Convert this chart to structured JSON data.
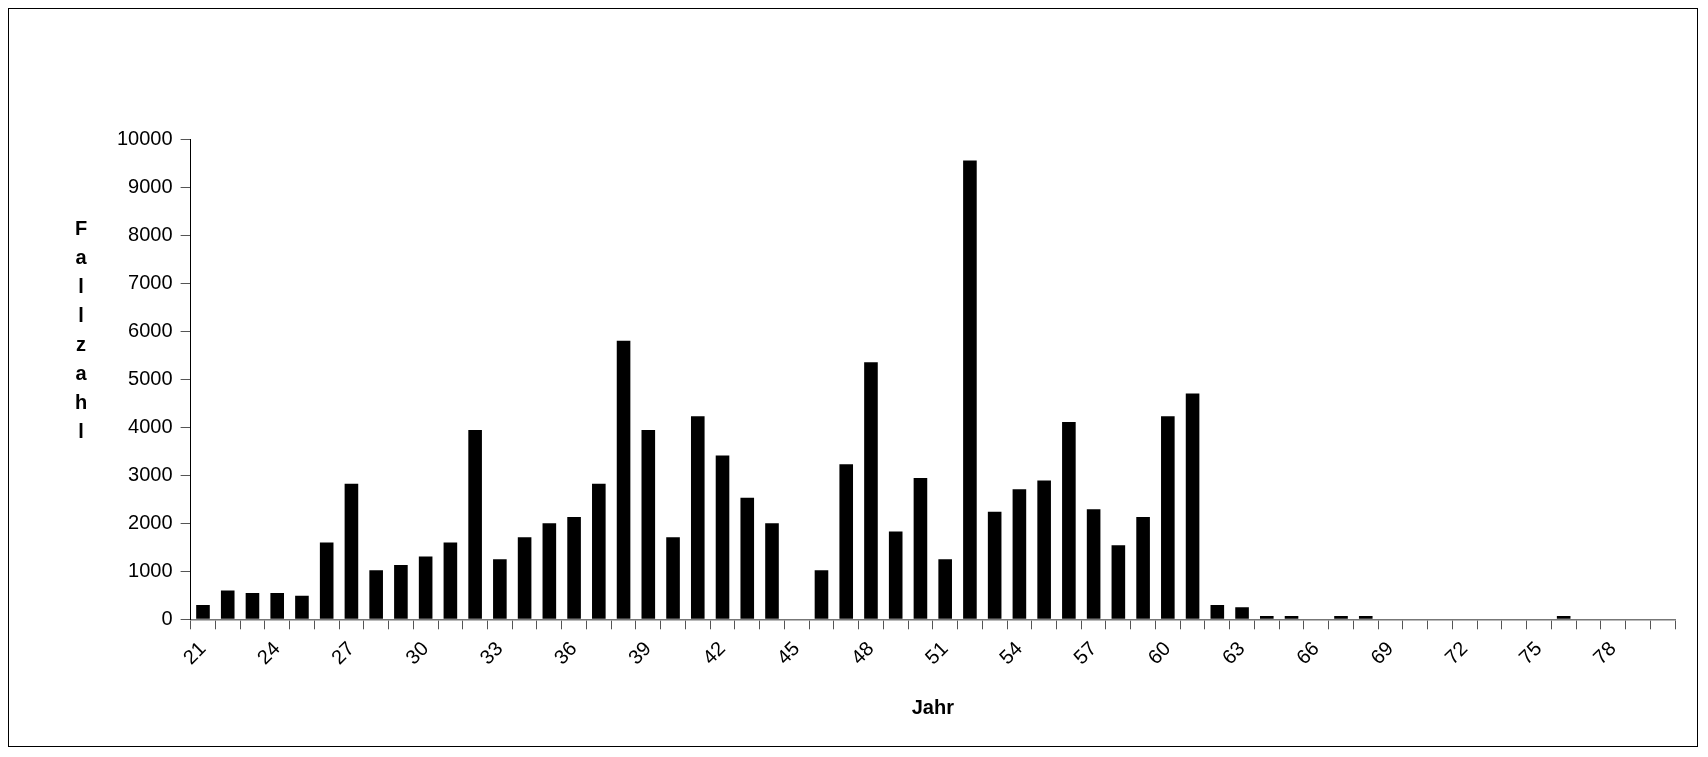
{
  "chart_data": {
    "type": "bar",
    "xlabel": "Jahr",
    "ylabel": "Fallzahl",
    "categories": [
      "21",
      null,
      null,
      "24",
      null,
      null,
      "27",
      null,
      null,
      "30",
      null,
      null,
      "33",
      null,
      null,
      "36",
      null,
      null,
      "39",
      null,
      null,
      "42",
      null,
      null,
      "45",
      null,
      null,
      "48",
      null,
      null,
      "51",
      null,
      null,
      "54",
      null,
      null,
      "57",
      null,
      null,
      "60",
      null,
      null,
      "63",
      null,
      null,
      "66",
      null,
      null,
      "69",
      null,
      null,
      "72",
      null,
      null,
      "75",
      null,
      null,
      "78",
      null,
      null
    ],
    "values": [
      300,
      600,
      550,
      550,
      490,
      1600,
      2820,
      1020,
      1130,
      1310,
      1600,
      3940,
      1250,
      1710,
      2000,
      2130,
      2820,
      5800,
      3940,
      1710,
      4230,
      3410,
      2530,
      2000,
      0,
      1020,
      3230,
      5350,
      1830,
      2940,
      1250,
      9550,
      2240,
      2710,
      2890,
      4110,
      2290,
      1540,
      2130,
      4230,
      4700,
      300,
      250,
      70,
      70,
      0,
      70,
      70,
      0,
      0,
      0,
      0,
      0,
      0,
      0,
      70,
      0,
      0,
      0,
      0
    ],
    "color": "#000000",
    "ylim": [
      0,
      10000
    ],
    "yticks": [
      0,
      1000,
      2000,
      3000,
      4000,
      5000,
      6000,
      7000,
      8000,
      9000,
      10000
    ],
    "grid": false,
    "legend": false
  }
}
